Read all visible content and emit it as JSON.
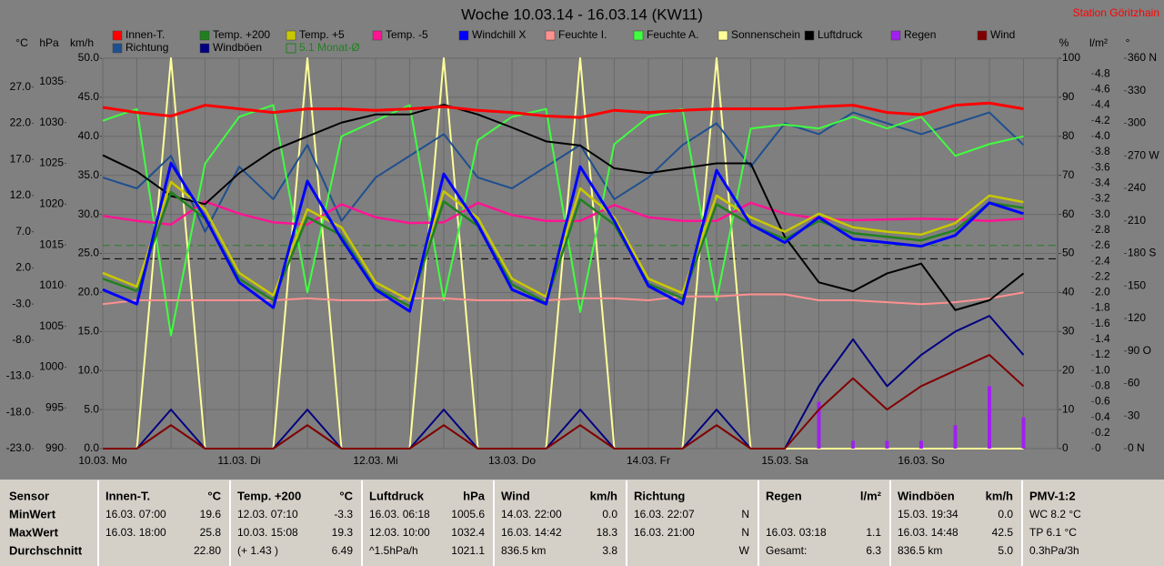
{
  "chart_data": {
    "type": "line",
    "title": "Woche 10.03.14 - 16.03.14 (KW11)",
    "station": "Station Göritzhain",
    "categories": [
      "10.03. Mo",
      null,
      null,
      null,
      "11.03. Di",
      null,
      null,
      null,
      "12.03. Mi",
      null,
      null,
      null,
      "13.03. Do",
      null,
      null,
      null,
      "14.03. Fr",
      null,
      null,
      null,
      "15.03. Sa",
      null,
      null,
      null,
      "16.03. So",
      null,
      null,
      null
    ],
    "grid": true,
    "ylabel": "km/h",
    "ylim": [
      0,
      50
    ],
    "yticks": [
      {
        "value": 0,
        "label": "0.0"
      },
      {
        "value": 5,
        "label": "5.0"
      },
      {
        "value": 10,
        "label": "10.0"
      },
      {
        "value": 15,
        "label": "15.0"
      },
      {
        "value": 20,
        "label": "20.0"
      },
      {
        "value": 25,
        "label": "25.0"
      },
      {
        "value": 30,
        "label": "30.0"
      },
      {
        "value": 35,
        "label": "35.0"
      },
      {
        "value": 40,
        "label": "40.0"
      },
      {
        "value": 45,
        "label": "45.0"
      },
      {
        "value": 50,
        "label": "50.0"
      }
    ],
    "y2label": "°C",
    "y2lim": [
      -23,
      31
    ],
    "y2ticks": [
      {
        "value": -23,
        "label": "-23.0"
      },
      {
        "value": -18,
        "label": "-18.0"
      },
      {
        "value": -13,
        "label": "-13.0"
      },
      {
        "value": -8,
        "label": "-8.0"
      },
      {
        "value": -3,
        "label": "-3.0"
      },
      {
        "value": 2,
        "label": "2.0"
      },
      {
        "value": 7,
        "label": "7.0"
      },
      {
        "value": 12,
        "label": "12.0"
      },
      {
        "value": 17,
        "label": "17.0"
      },
      {
        "value": 22,
        "label": "22.0"
      },
      {
        "value": 27,
        "label": "27.0"
      }
    ],
    "y3label": "hPa",
    "y3lim": [
      990,
      1037.9
    ],
    "y3ticks": [
      990,
      995,
      1000,
      1005,
      1010,
      1015,
      1020,
      1025,
      1030,
      1035
    ],
    "y4label": "%",
    "y4lim": [
      0,
      100
    ],
    "y4ticks": [
      0,
      10,
      20,
      30,
      40,
      50,
      60,
      70,
      80,
      90,
      100
    ],
    "y5label": "l/m²",
    "y5lim": [
      0,
      5
    ],
    "y5ticks": [
      0,
      0.2,
      0.4,
      0.6,
      0.8,
      {
        "value": 1,
        "label": "1.0"
      },
      1.2,
      1.4,
      1.6,
      1.8,
      {
        "value": 2,
        "label": "2.0"
      },
      2.2,
      2.4,
      2.6,
      2.8,
      {
        "value": 3,
        "label": "3.0"
      },
      3.2,
      3.4,
      3.6,
      3.8,
      {
        "value": 4,
        "label": "4.0"
      },
      4.2,
      4.4,
      4.6,
      4.8
    ],
    "y6label": "°",
    "y6lim": [
      0,
      360
    ],
    "y6ticks": [
      {
        "value": 0,
        "label": "0 N"
      },
      30,
      60,
      {
        "value": 90,
        "label": "90 O"
      },
      120,
      150,
      {
        "value": 180,
        "label": "180 S"
      },
      210,
      240,
      {
        "value": 270,
        "label": "270 W"
      },
      300,
      330,
      {
        "value": 360,
        "label": "360 N"
      }
    ],
    "series": [
      {
        "name": "Innen-T.",
        "color": "#ff0000",
        "axis": "y2",
        "values": [
          24.2,
          23.5,
          23,
          24.5,
          24,
          23.5,
          24,
          24,
          23.8,
          24,
          24.3,
          23.8,
          23.5,
          23,
          22.8,
          23.8,
          23.5,
          23.8,
          24,
          24,
          24,
          24.3,
          24.5,
          23.5,
          23.2,
          24.5,
          24.8,
          24
        ]
      },
      {
        "name": "Temp. +200",
        "color": "#208020",
        "axis": "y2",
        "values": [
          0.5,
          -1.2,
          12.5,
          8.8,
          0.5,
          -2.5,
          9,
          6.5,
          -0.8,
          -3.3,
          11.2,
          7.8,
          -0.3,
          -2.8,
          11.5,
          8,
          -0.2,
          -2.2,
          10.8,
          8,
          6,
          8.5,
          6.8,
          6.3,
          5.8,
          7.2,
          11,
          10.3
        ]
      },
      {
        "name": "Temp. +5",
        "color": "#c8c800",
        "axis": "y2",
        "values": [
          1.3,
          -0.6,
          13.9,
          10.1,
          1.3,
          -1.8,
          10.1,
          7.6,
          0,
          -2.5,
          12.6,
          8.9,
          0.5,
          -2,
          13,
          9,
          0.5,
          -1.5,
          12,
          9,
          7,
          9.5,
          7.6,
          7,
          6.6,
          8.2,
          12,
          11.1
        ]
      },
      {
        "name": "Temp. -5",
        "color": "#ff1493",
        "axis": "y2",
        "values": [
          9.2,
          8.5,
          8,
          11.2,
          9.5,
          8.3,
          8,
          10.8,
          9,
          8.2,
          8.3,
          11,
          9.3,
          8.5,
          8.5,
          10.7,
          9,
          8.5,
          8.5,
          11,
          9.5,
          8.8,
          8.6,
          8.7,
          8.8,
          8.7,
          8.5,
          8.8
        ]
      },
      {
        "name": "Windchill X",
        "color": "#0000ff",
        "axis": "y2",
        "values": [
          -1,
          -3,
          16.5,
          9,
          0,
          -3.5,
          14,
          6,
          -1,
          -4,
          15,
          8,
          -1,
          -3,
          16,
          8.5,
          -0.5,
          -3,
          15.5,
          8,
          5.5,
          9,
          6,
          5.5,
          5,
          6.5,
          11,
          9.5
        ]
      },
      {
        "name": "Feuchte I.",
        "color": "#ff9090",
        "axis": "y4",
        "values": [
          37,
          38,
          38,
          38,
          38,
          38,
          38.5,
          38,
          38,
          38.5,
          38.5,
          38,
          38,
          38,
          38.5,
          38.5,
          38,
          39,
          39,
          39.5,
          39.5,
          38,
          38,
          37.5,
          37,
          37.5,
          38.5,
          40
        ]
      },
      {
        "name": "Feuchte A.",
        "color": "#40ff40",
        "axis": "y4",
        "values": [
          84,
          87,
          29,
          73,
          85,
          88,
          40,
          80,
          84,
          88,
          38,
          79,
          85,
          87,
          35,
          78,
          85,
          87,
          38,
          82,
          83,
          82,
          85,
          82,
          85,
          75,
          78,
          80
        ]
      },
      {
        "name": "Sonnenschein",
        "color": "#ffff99",
        "axis": "y4",
        "values": [
          0,
          0,
          100,
          0,
          0,
          0,
          100,
          0,
          0,
          0,
          100,
          0,
          0,
          0,
          100,
          0,
          0,
          0,
          100,
          0,
          0,
          0,
          0,
          0,
          0,
          0,
          0,
          0
        ]
      },
      {
        "name": "Luftdruck",
        "color": "#000000",
        "axis": "y3",
        "values": [
          1026,
          1024,
          1021,
          1020,
          1023.8,
          1026.6,
          1028.3,
          1030,
          1031,
          1031,
          1032.2,
          1031,
          1029.4,
          1027.7,
          1027.2,
          1024.4,
          1023.8,
          1024.4,
          1025,
          1025,
          1016,
          1010.4,
          1009.3,
          1011.5,
          1012.7,
          1007,
          1008.2,
          1011.5
        ]
      },
      {
        "name": "Regen",
        "color": "#a020f0",
        "axis": "y5",
        "type": "bar",
        "values": [
          0,
          0,
          0,
          0,
          0,
          0,
          0,
          0,
          0,
          0,
          0,
          0,
          0,
          0,
          0,
          0,
          0,
          0,
          0,
          0,
          0,
          0.6,
          0.1,
          0.1,
          0.1,
          0.3,
          0.8,
          0.4
        ]
      },
      {
        "name": "Wind",
        "color": "#800000",
        "axis": "y",
        "values": [
          0,
          0,
          3,
          0,
          0,
          0,
          3,
          0,
          0,
          0,
          3,
          0,
          0,
          0,
          3,
          0,
          0,
          0,
          3,
          0,
          0,
          5,
          9,
          5,
          8,
          10,
          12,
          8
        ]
      },
      {
        "name": "Richtung",
        "color": "#1f4f8f",
        "axis": "y6",
        "values": [
          250,
          240,
          270,
          200,
          260,
          230,
          280,
          210,
          250,
          270,
          290,
          250,
          240,
          260,
          280,
          230,
          250,
          280,
          300,
          260,
          300,
          290,
          310,
          300,
          290,
          300,
          310,
          280
        ]
      },
      {
        "name": "Windböen",
        "color": "#000080",
        "axis": "y",
        "values": [
          0,
          0,
          5,
          0,
          0,
          0,
          5,
          0,
          0,
          0,
          5,
          0,
          0,
          0,
          5,
          0,
          0,
          0,
          5,
          0,
          0,
          8,
          14,
          8,
          12,
          15,
          17,
          12
        ]
      }
    ],
    "reference_lines": [
      {
        "name": "5.1 Monat-Ø",
        "color": "#208020",
        "axis": "y2",
        "value": 5.1
      },
      {
        "color": "#000000",
        "axis": "y3",
        "value": 1013.3
      }
    ]
  },
  "table": {
    "row_headers": [
      "Sensor",
      "MinWert",
      "MaxWert",
      "Durchschnitt"
    ],
    "columns": [
      {
        "title": "Innen-T.",
        "unit": "°C",
        "rows": [
          [
            "16.03. 07:00",
            "19.6"
          ],
          [
            "16.03. 18:00",
            "25.8"
          ],
          [
            "22.80"
          ]
        ]
      },
      {
        "title": "Temp. +200",
        "unit": "°C",
        "rows": [
          [
            "12.03. 07:10",
            "-3.3"
          ],
          [
            "10.03. 15:08",
            "19.3"
          ],
          [
            "(+ 1.43 )",
            "6.49"
          ]
        ]
      },
      {
        "title": "Luftdruck",
        "unit": "hPa",
        "rows": [
          [
            "16.03. 06:18",
            "1005.6"
          ],
          [
            "12.03. 10:00",
            "1032.4"
          ],
          [
            "^1.5hPa/h",
            "1021.1"
          ]
        ]
      },
      {
        "title": "Wind",
        "unit": "km/h",
        "rows": [
          [
            "14.03. 22:00",
            "0.0"
          ],
          [
            "16.03. 14:42",
            "18.3"
          ],
          [
            "836.5 km",
            "3.8"
          ]
        ]
      },
      {
        "title": "Richtung",
        "rows": [
          [
            "16.03. 22:07",
            "N"
          ],
          [
            "16.03. 21:00",
            "N"
          ],
          [
            "W"
          ]
        ]
      },
      {
        "title": "Regen",
        "unit": "l/m²",
        "rows": [
          [],
          [
            "16.03. 03:18",
            "1.1"
          ],
          [
            "Gesamt:",
            "6.3"
          ]
        ]
      },
      {
        "title": "Windböen",
        "unit": "km/h",
        "rows": [
          [
            "15.03. 19:34",
            "0.0"
          ],
          [
            "16.03. 14:48",
            "42.5"
          ],
          [
            "836.5 km",
            "5.0"
          ]
        ]
      },
      {
        "title": "PMV-1:2",
        "rows": [
          [
            "WC 8.2 °C"
          ],
          [
            "TP 6.1 °C"
          ],
          [
            "0.3hPa/3h"
          ]
        ]
      }
    ]
  }
}
